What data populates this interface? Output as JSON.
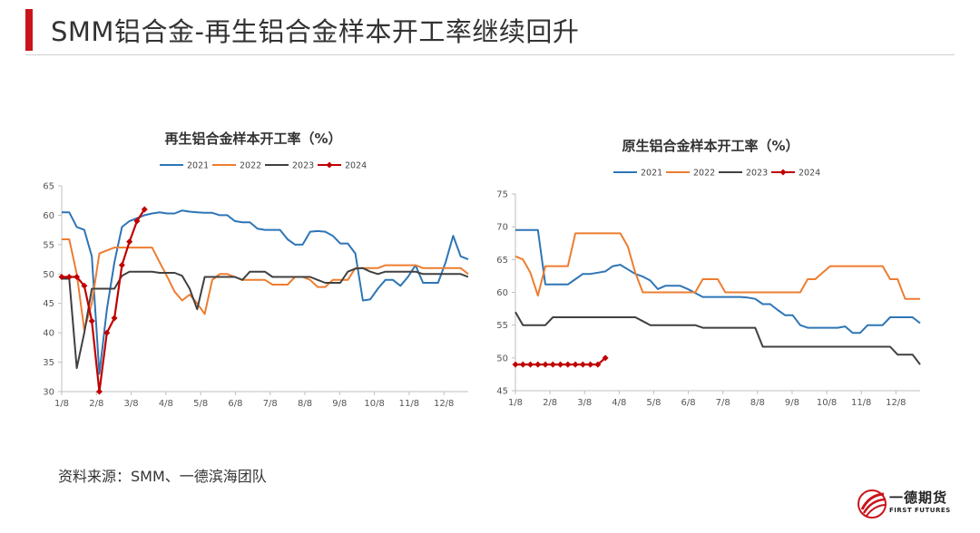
{
  "header": {
    "title": "SMM铝合金-再生铝合金样本开工率继续回升"
  },
  "footer": {
    "source": "资料来源：SMM、一德滨海团队"
  },
  "logo": {
    "name": "一德期货",
    "sub": "FIRST FUTURES"
  },
  "colors": {
    "2021": "#2e75b6",
    "2022": "#ed7d31",
    "2023": "#404040",
    "2024": "#c00000",
    "accent": "#c9141b"
  },
  "chart_data": [
    {
      "type": "line",
      "title": "再生铝合金样本开工率（%）",
      "xlabel": "",
      "ylabel": "",
      "x_ticks": [
        "1/8",
        "2/8",
        "3/8",
        "4/8",
        "5/8",
        "6/8",
        "7/8",
        "8/8",
        "9/8",
        "10/8",
        "11/8",
        "12/8"
      ],
      "ylim": [
        30,
        65
      ],
      "y_ticks": [
        30,
        35,
        40,
        45,
        50,
        55,
        60,
        65
      ],
      "grid": false,
      "legend_position": "top",
      "series": [
        {
          "name": "2021",
          "values": [
            60.5,
            60.5,
            58,
            57.5,
            53,
            33,
            44,
            52,
            58,
            59,
            59.5,
            60,
            60.3,
            60.5,
            60.3,
            60.3,
            60.8,
            60.6,
            60.5,
            60.4,
            60.4,
            60,
            60,
            59,
            58.8,
            58.8,
            57.7,
            57.5,
            57.5,
            57.5,
            55.9,
            55,
            55,
            57.2,
            57.3,
            57.2,
            56.5,
            55.2,
            55.2,
            53.5,
            45.5,
            45.7,
            47.5,
            49,
            49,
            48,
            49.5,
            51.5,
            48.5,
            48.5,
            48.5,
            52,
            56.5,
            53,
            52.5
          ]
        },
        {
          "name": "2022",
          "values": [
            55.9,
            55.9,
            50,
            40.5,
            45,
            53.5,
            54,
            54.5,
            54.5,
            54.5,
            54.5,
            54.5,
            54.5,
            52,
            49.6,
            47,
            45.5,
            46.5,
            45,
            43.2,
            49,
            50,
            50,
            49.5,
            49,
            49,
            49,
            49,
            48.2,
            48.2,
            48.2,
            49.5,
            49.5,
            49,
            47.8,
            47.8,
            49,
            49,
            49,
            51,
            51,
            51,
            51,
            51.5,
            51.5,
            51.5,
            51.5,
            51.5,
            51,
            51,
            51,
            51,
            51,
            51,
            50
          ]
        },
        {
          "name": "2023",
          "values": [
            49.2,
            49.2,
            34,
            40,
            47.5,
            47.5,
            47.5,
            47.5,
            49.7,
            50.4,
            50.4,
            50.4,
            50.4,
            50.2,
            50.2,
            50.2,
            49.7,
            47.5,
            44,
            49.5,
            49.5,
            49.5,
            49.5,
            49.5,
            49,
            50.4,
            50.4,
            50.4,
            49.5,
            49.5,
            49.5,
            49.5,
            49.5,
            49.5,
            49,
            48.5,
            48.5,
            48.5,
            50.4,
            50.9,
            51,
            50.4,
            50,
            50.4,
            50.4,
            50.4,
            50.4,
            50.4,
            50,
            50,
            50,
            50,
            50,
            50,
            49.5
          ]
        },
        {
          "name": "2024",
          "values": [
            49.5,
            49.5,
            49.5,
            48,
            42,
            30,
            40,
            42.5,
            51.5,
            55.5,
            59,
            61
          ]
        }
      ]
    },
    {
      "type": "line",
      "title": "原生铝合金样本开工率（%）",
      "xlabel": "",
      "ylabel": "",
      "x_ticks": [
        "1/8",
        "2/8",
        "3/8",
        "4/8",
        "5/8",
        "6/8",
        "7/8",
        "8/8",
        "9/8",
        "10/8",
        "11/8",
        "12/8"
      ],
      "ylim": [
        45,
        75
      ],
      "y_ticks": [
        45,
        50,
        55,
        60,
        65,
        70,
        75
      ],
      "grid": false,
      "legend_position": "top",
      "series": [
        {
          "name": "2021",
          "values": [
            69.5,
            69.5,
            69.5,
            69.5,
            61.2,
            61.2,
            61.2,
            61.2,
            62,
            62.8,
            62.8,
            63,
            63.2,
            64,
            64.2,
            63.5,
            62.8,
            62.4,
            61.8,
            60.5,
            61,
            61,
            61,
            60.5,
            59.9,
            59.3,
            59.3,
            59.3,
            59.3,
            59.3,
            59.3,
            59.2,
            59,
            58.2,
            58.2,
            57.3,
            56.5,
            56.5,
            55,
            54.6,
            54.6,
            54.6,
            54.6,
            54.6,
            54.8,
            53.8,
            53.8,
            55,
            55,
            55,
            56.2,
            56.2,
            56.2,
            56.2,
            55.3
          ]
        },
        {
          "name": "2022",
          "values": [
            65.5,
            65,
            63,
            59.5,
            64,
            64,
            64,
            64,
            69,
            69,
            69,
            69,
            69,
            69,
            69,
            67,
            63,
            60,
            60,
            60,
            60,
            60,
            60,
            60,
            60,
            62,
            62,
            62,
            60,
            60,
            60,
            60,
            60,
            60,
            60,
            60,
            60,
            60,
            60,
            62,
            62,
            63,
            64,
            64,
            64,
            64,
            64,
            64,
            64,
            64,
            62,
            62,
            59,
            59,
            59
          ]
        },
        {
          "name": "2023",
          "values": [
            57,
            55,
            55,
            55,
            55,
            56.2,
            56.2,
            56.2,
            56.2,
            56.2,
            56.2,
            56.2,
            56.2,
            56.2,
            56.2,
            56.2,
            56.2,
            55.6,
            55,
            55,
            55,
            55,
            55,
            55,
            55,
            54.6,
            54.6,
            54.6,
            54.6,
            54.6,
            54.6,
            54.6,
            54.6,
            51.7,
            51.7,
            51.7,
            51.7,
            51.7,
            51.7,
            51.7,
            51.7,
            51.7,
            51.7,
            51.7,
            51.7,
            51.7,
            51.7,
            51.7,
            51.7,
            51.7,
            51.7,
            50.5,
            50.5,
            50.5,
            49
          ]
        },
        {
          "name": "2024",
          "values": [
            49,
            49,
            49,
            49,
            49,
            49,
            49,
            49,
            49,
            49,
            49,
            49,
            50
          ]
        }
      ]
    }
  ]
}
